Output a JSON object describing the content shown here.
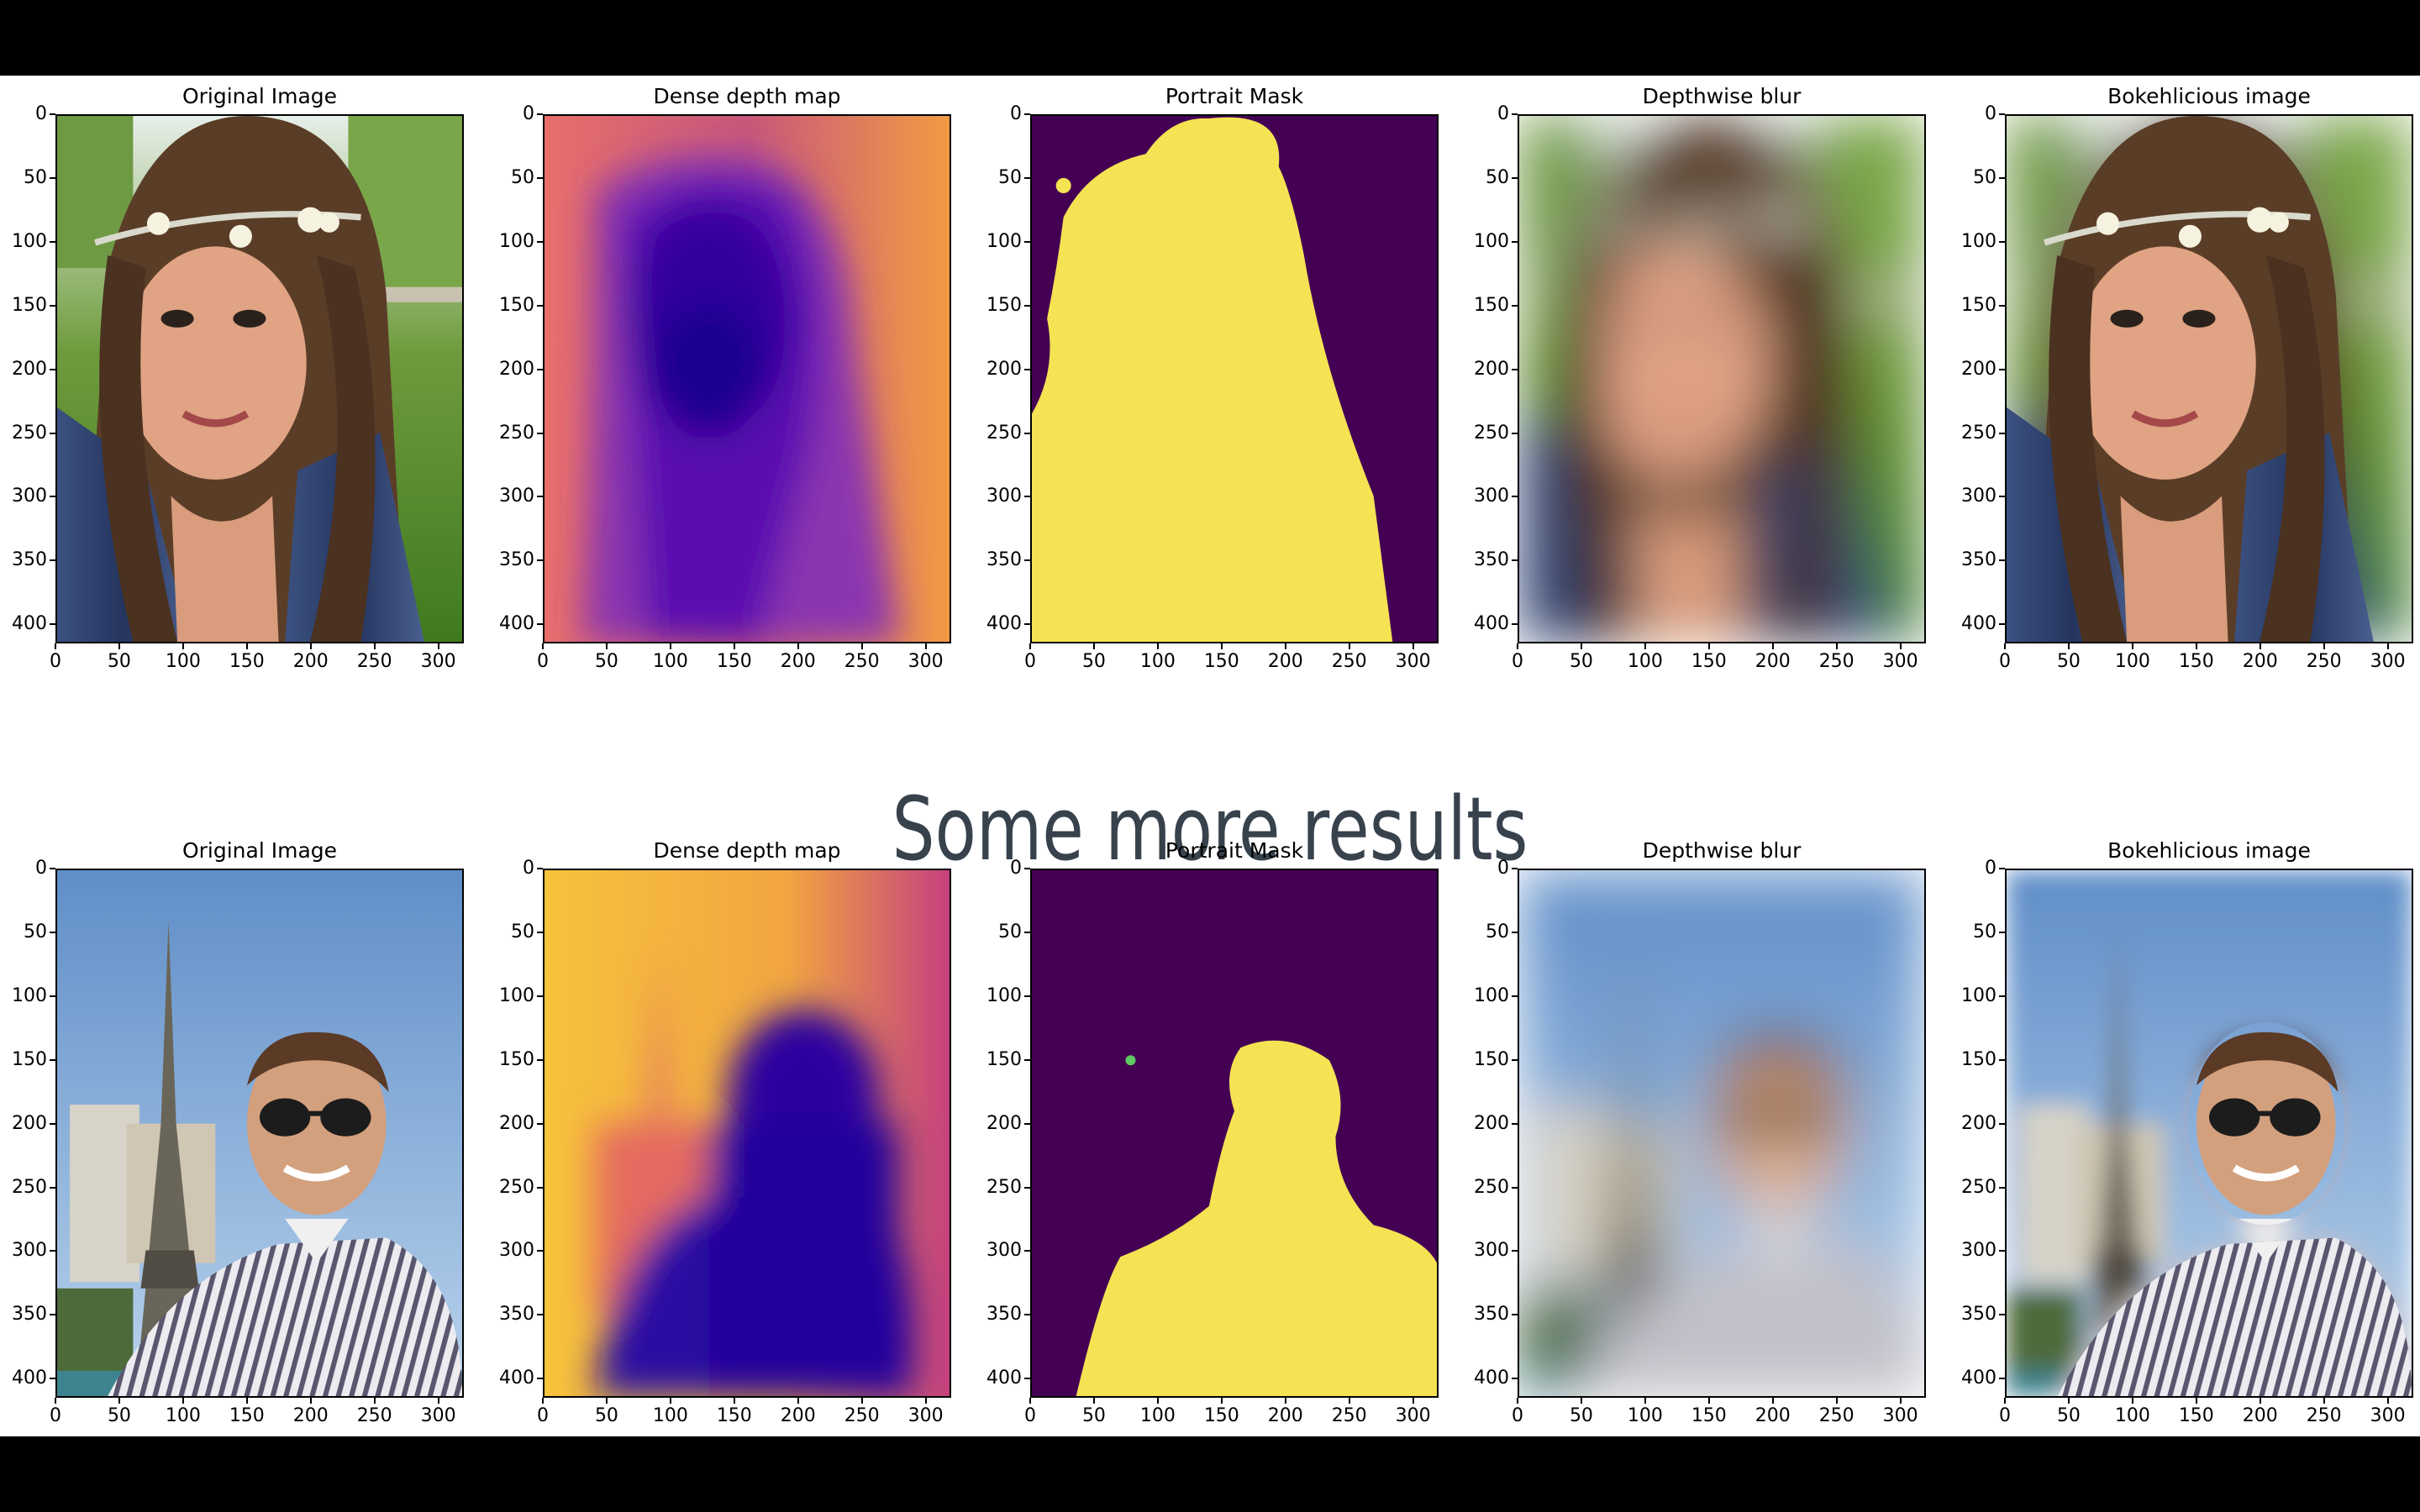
{
  "heading": "Some more results",
  "rows": [
    {
      "panels": [
        {
          "title": "Original Image",
          "kind": "photo-woman"
        },
        {
          "title": "Dense depth map",
          "kind": "depth-woman"
        },
        {
          "title": "Portrait Mask",
          "kind": "mask-woman"
        },
        {
          "title": "Depthwise blur",
          "kind": "blur-woman"
        },
        {
          "title": "Bokehlicious image",
          "kind": "bokeh-woman"
        }
      ]
    },
    {
      "panels": [
        {
          "title": "Original Image",
          "kind": "photo-man"
        },
        {
          "title": "Dense depth map",
          "kind": "depth-man"
        },
        {
          "title": "Portrait Mask",
          "kind": "mask-man"
        },
        {
          "title": "Depthwise blur",
          "kind": "blur-man"
        },
        {
          "title": "Bokehlicious image",
          "kind": "bokeh-man"
        }
      ]
    }
  ],
  "axes": {
    "x_ticks": [
      "0",
      "50",
      "100",
      "150",
      "200",
      "250",
      "300"
    ],
    "y_ticks": [
      "0",
      "50",
      "100",
      "150",
      "200",
      "250",
      "300",
      "350",
      "400"
    ],
    "x_range": [
      0,
      320
    ],
    "y_range": [
      0,
      415
    ]
  },
  "colors": {
    "mask_bg": "#440154",
    "mask_fg": "#f5e353",
    "depth_near": "#0d0887",
    "depth_far": "#f0a33a"
  }
}
